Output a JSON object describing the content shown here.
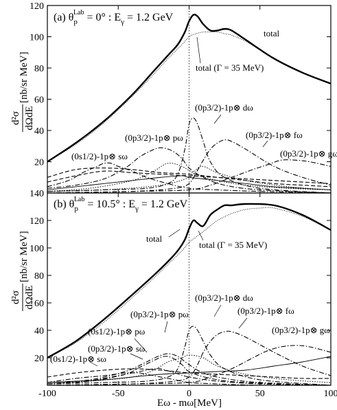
{
  "chart_data": [
    {
      "type": "line",
      "panel_label": "(a) θ",
      "theta_sub": "p",
      "theta_sup": "Lab",
      "panel_rest": " = 0° : E",
      "egamma_sub": "γ",
      "panel_tail": " = 1.2 GeV",
      "ylim": [
        0,
        120
      ],
      "yticks": [
        20,
        40,
        60,
        80,
        100,
        120
      ],
      "series": [
        {
          "name": "total",
          "style": "total",
          "x": [
            -100,
            -80,
            -60,
            -40,
            -25,
            -15,
            -8,
            -3,
            0,
            3,
            6,
            10,
            15,
            20,
            25,
            30,
            40,
            60,
            80,
            100
          ],
          "y": [
            20,
            32,
            46,
            63,
            78,
            88,
            95,
            103,
            110,
            114,
            113,
            108,
            104,
            104,
            105,
            104,
            98,
            86,
            77,
            70
          ]
        },
        {
          "name": "total (Γ = 35 MeV)",
          "style": "gamma",
          "x": [
            -100,
            -80,
            -60,
            -40,
            -25,
            -15,
            -5,
            0,
            5,
            10,
            15,
            20,
            25,
            30,
            40,
            60,
            80,
            100
          ],
          "y": [
            20,
            31,
            45,
            62,
            76,
            86,
            95,
            100,
            102,
            103,
            103,
            103,
            102,
            101,
            97,
            86,
            77,
            70
          ]
        },
        {
          "name": "(0s1/2) s",
          "style": "dashdot",
          "x": [
            -100,
            -85,
            -75,
            -65,
            -60,
            -55,
            -50,
            -40,
            -30,
            -15,
            0,
            20,
            50,
            100
          ],
          "y": [
            4,
            8,
            13,
            17,
            19,
            19,
            17,
            14,
            10,
            6,
            3,
            2,
            1,
            0
          ]
        },
        {
          "name": "(0p3/2) p",
          "style": "dashdot",
          "x": [
            -100,
            -80,
            -60,
            -45,
            -35,
            -27,
            -20,
            -12,
            -5,
            0,
            10,
            25,
            50,
            100
          ],
          "y": [
            3,
            5,
            9,
            16,
            23,
            27,
            29,
            27,
            22,
            16,
            10,
            5,
            2,
            0
          ]
        },
        {
          "name": "(0p3/2) d",
          "style": "dashdot",
          "x": [
            -100,
            -60,
            -30,
            -15,
            -8,
            -3,
            0,
            3,
            6,
            10,
            15,
            25,
            50,
            100
          ],
          "y": [
            1,
            2,
            3,
            6,
            12,
            28,
            44,
            48,
            44,
            33,
            20,
            10,
            3,
            0
          ]
        },
        {
          "name": "(0p3/2) f",
          "style": "dashdot",
          "x": [
            -100,
            -40,
            -10,
            0,
            5,
            10,
            15,
            20,
            25,
            30,
            40,
            60,
            80,
            100
          ],
          "y": [
            0,
            1,
            3,
            6,
            13,
            21,
            28,
            32,
            34,
            33,
            28,
            17,
            10,
            5
          ]
        },
        {
          "name": "(0p3/2) g",
          "style": "dashdot",
          "x": [
            -100,
            -40,
            0,
            15,
            30,
            45,
            55,
            65,
            75,
            85,
            100
          ],
          "y": [
            0,
            1,
            2,
            5,
            10,
            15,
            18,
            21,
            21,
            20,
            17
          ]
        },
        {
          "name": "",
          "style": "dashed",
          "x": [
            -100,
            -80,
            -60,
            -40,
            -20,
            0,
            20,
            40,
            60,
            80,
            100
          ],
          "y": [
            10,
            15,
            16,
            15,
            13,
            12,
            10,
            8,
            6,
            5,
            4
          ]
        },
        {
          "name": "",
          "style": "dashed",
          "x": [
            -100,
            -80,
            -60,
            -40,
            -20,
            0,
            20,
            40,
            60,
            80,
            100
          ],
          "y": [
            7,
            11,
            14,
            13,
            12,
            11,
            10,
            9,
            8,
            7,
            6
          ]
        },
        {
          "name": "",
          "style": "solid-thin",
          "x": [
            -100,
            -80,
            -60,
            -40,
            -20,
            -5,
            0,
            20,
            40,
            60,
            80,
            100
          ],
          "y": [
            2,
            4,
            6,
            8,
            10,
            11,
            10,
            8,
            6,
            4,
            3,
            2
          ]
        },
        {
          "name": "",
          "style": "dotted",
          "x": [
            -100,
            -70,
            -40,
            -25,
            -15,
            -5,
            5,
            20,
            40,
            70,
            100
          ],
          "y": [
            1,
            3,
            8,
            14,
            19,
            17,
            12,
            8,
            5,
            3,
            2
          ]
        },
        {
          "name": "",
          "style": "dotted",
          "x": [
            -100,
            -60,
            -20,
            0,
            5,
            10,
            20,
            40,
            70,
            100
          ],
          "y": [
            1,
            2,
            5,
            10,
            15,
            17,
            13,
            8,
            4,
            2
          ]
        }
      ]
    },
    {
      "type": "line",
      "panel_label": "(b) θ",
      "theta_sub": "p",
      "theta_sup": "Lab",
      "panel_rest": " = 10.5° : E",
      "egamma_sub": "γ",
      "panel_tail": " = 1.2 GeV",
      "ylim": [
        0,
        140
      ],
      "yticks": [
        20,
        40,
        60,
        80,
        100,
        120,
        140
      ],
      "series": [
        {
          "name": "total",
          "style": "total",
          "x": [
            -100,
            -80,
            -60,
            -40,
            -25,
            -15,
            -8,
            -3,
            0,
            3,
            6,
            10,
            15,
            20,
            25,
            30,
            40,
            60,
            80,
            100
          ],
          "y": [
            20,
            32,
            48,
            66,
            80,
            90,
            98,
            106,
            114,
            120,
            118,
            116,
            124,
            128,
            131,
            131,
            132,
            131,
            124,
            113
          ]
        },
        {
          "name": "total (Γ = 35 MeV)",
          "style": "gamma",
          "x": [
            -100,
            -80,
            -60,
            -40,
            -25,
            -15,
            -5,
            0,
            5,
            10,
            15,
            20,
            30,
            40,
            50,
            60,
            80,
            100
          ],
          "y": [
            20,
            31,
            46,
            64,
            78,
            88,
            98,
            104,
            108,
            112,
            116,
            120,
            125,
            128,
            129,
            129,
            123,
            113
          ]
        },
        {
          "name": "(0s1/2) s",
          "style": "dashdot",
          "x": [
            -100,
            -80,
            -60,
            -45,
            -40,
            -35,
            -30,
            -20,
            -10,
            0,
            20,
            50,
            100
          ],
          "y": [
            2,
            5,
            7,
            9,
            9,
            9,
            8,
            6,
            4,
            2,
            1,
            0,
            0
          ]
        },
        {
          "name": "(0p3/2) s",
          "style": "dashdot",
          "x": [
            -100,
            -80,
            -60,
            -45,
            -35,
            -25,
            -20,
            -10,
            0,
            20,
            50,
            100
          ],
          "y": [
            1,
            2,
            5,
            8,
            10,
            12,
            12,
            9,
            6,
            3,
            1,
            0
          ]
        },
        {
          "name": "(0s1/2) p",
          "style": "dashdot",
          "x": [
            -100,
            -70,
            -45,
            -35,
            -25,
            -18,
            -12,
            -5,
            0,
            15,
            40,
            100
          ],
          "y": [
            1,
            3,
            8,
            13,
            18,
            21,
            20,
            15,
            10,
            5,
            2,
            0
          ]
        },
        {
          "name": "(0p3/2) p",
          "style": "dashdot",
          "x": [
            -100,
            -70,
            -45,
            -30,
            -22,
            -15,
            -8,
            0,
            10,
            25,
            50,
            100
          ],
          "y": [
            1,
            4,
            10,
            17,
            21,
            23,
            21,
            15,
            9,
            5,
            2,
            0
          ]
        },
        {
          "name": "(0p3/2) d",
          "style": "dashdot",
          "x": [
            -100,
            -60,
            -30,
            -15,
            -8,
            -3,
            0,
            3,
            6,
            10,
            15,
            25,
            50,
            100
          ],
          "y": [
            1,
            2,
            3,
            6,
            12,
            28,
            40,
            43,
            40,
            32,
            22,
            12,
            4,
            0
          ]
        },
        {
          "name": "(0p3/2) f",
          "style": "dashdot",
          "x": [
            -100,
            -40,
            -10,
            0,
            5,
            10,
            15,
            20,
            25,
            30,
            40,
            60,
            80,
            100
          ],
          "y": [
            0,
            1,
            3,
            6,
            13,
            24,
            32,
            37,
            39,
            39,
            35,
            24,
            14,
            7
          ]
        },
        {
          "name": "(0p3/2) g",
          "style": "dashdot",
          "x": [
            -100,
            -40,
            0,
            15,
            30,
            45,
            55,
            65,
            75,
            85,
            100
          ],
          "y": [
            0,
            1,
            2,
            6,
            12,
            20,
            25,
            28,
            29,
            28,
            24
          ]
        },
        {
          "name": "",
          "style": "dashed",
          "x": [
            -100,
            -80,
            -60,
            -40,
            -20,
            0,
            20,
            40,
            60,
            80,
            100
          ],
          "y": [
            6,
            9,
            11,
            12,
            11,
            9,
            8,
            7,
            6,
            5,
            5
          ]
        },
        {
          "name": "",
          "style": "solid-thin",
          "x": [
            -100,
            -80,
            -60,
            -40,
            -20,
            0,
            20,
            40,
            60,
            80,
            100
          ],
          "y": [
            2,
            3,
            4,
            6,
            8,
            9,
            10,
            11,
            14,
            17,
            21
          ]
        },
        {
          "name": "",
          "style": "dotted",
          "x": [
            -100,
            -70,
            -40,
            -25,
            -15,
            -5,
            0,
            10,
            20,
            40,
            70,
            100
          ],
          "y": [
            1,
            3,
            6,
            11,
            17,
            20,
            22,
            20,
            14,
            8,
            4,
            2
          ]
        }
      ]
    }
  ],
  "axes": {
    "ylabel_frac_num": "d²σ",
    "ylabel_frac_den": "dΩdE",
    "ylabel_unit": "[nb/sr MeV]",
    "xlabel": "Eω - mω[MeV]",
    "xlim": [
      -100,
      100
    ],
    "xticks": [
      "-100",
      "-50",
      "0",
      "50",
      "100"
    ]
  },
  "annotations_a": {
    "total": "total",
    "gamma": "total (Γ = 35 MeV)",
    "s": "(0s1/2)-1p⊗ sω",
    "p": "(0p3/2)-1p⊗ pω",
    "d": "(0p3/2)-1p⊗ dω",
    "f": "(0p3/2)-1p⊗ fω",
    "g": "(0p3/2)-1p⊗ gω"
  },
  "annotations_b": {
    "total": "total",
    "gamma": "total (Γ = 35 MeV)",
    "s1s": "(0s1/2)-1p⊗ sω",
    "p3s": "(0p3/2)-1p⊗ sω",
    "s1p": "(0s1/2)-1p⊗ pω",
    "p3p": "(0p3/2)-1p⊗ pω",
    "d": "(0p3/2)-1p⊗ dω",
    "f": "(0p3/2)-1p⊗ fω",
    "g": "(0p3/2)-1p⊗ gω"
  }
}
